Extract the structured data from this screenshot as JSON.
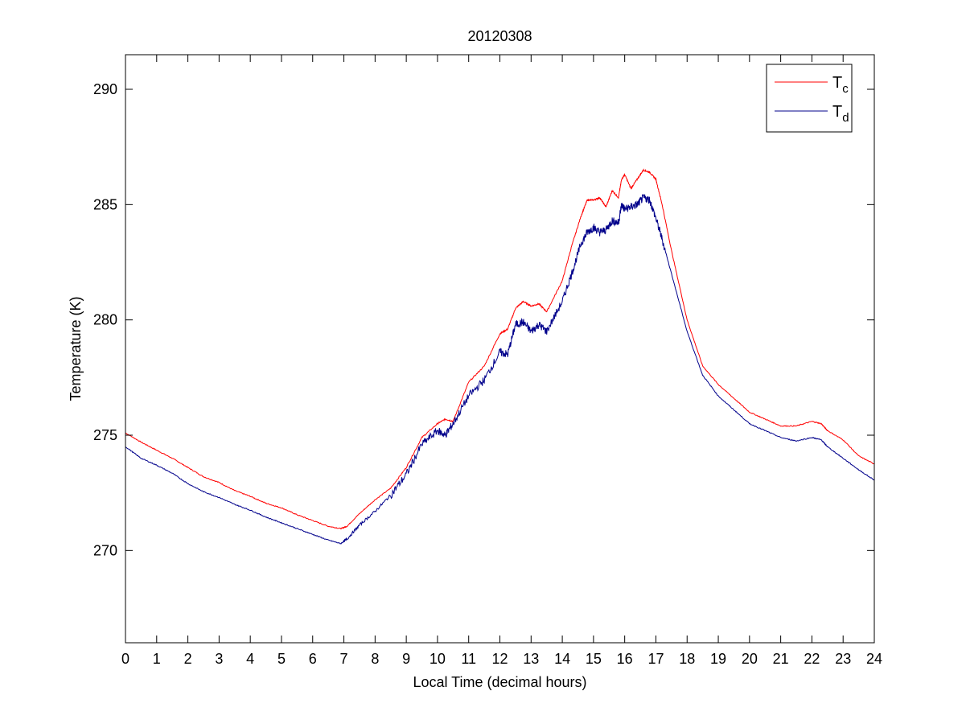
{
  "chart_data": {
    "type": "line",
    "title": "20120308",
    "xlabel": "Local Time (decimal hours)",
    "ylabel": "Temperature (K)",
    "xlim": [
      0,
      24
    ],
    "ylim": [
      266,
      291.5
    ],
    "xticks": [
      "0",
      "1",
      "2",
      "3",
      "4",
      "5",
      "6",
      "7",
      "8",
      "9",
      "10",
      "11",
      "12",
      "13",
      "14",
      "15",
      "16",
      "17",
      "18",
      "19",
      "20",
      "21",
      "22",
      "23",
      "24"
    ],
    "yticks": [
      "270",
      "275",
      "280",
      "285",
      "290"
    ],
    "legend_position": "top-right",
    "grid": false,
    "series": [
      {
        "name_main": "T",
        "name_sub": "c",
        "color": "#ff0000",
        "x": [
          0,
          0.5,
          1,
          1.5,
          2,
          2.5,
          3,
          3.5,
          4,
          4.5,
          5,
          5.5,
          6,
          6.5,
          6.9,
          7.1,
          7.5,
          8,
          8.5,
          9,
          9.5,
          10,
          10.25,
          10.5,
          11,
          11.5,
          12,
          12.25,
          12.5,
          12.75,
          13,
          13.25,
          13.5,
          14,
          14.3,
          14.6,
          14.8,
          15,
          15.2,
          15.4,
          15.6,
          15.8,
          15.9,
          16,
          16.2,
          16.4,
          16.6,
          16.8,
          17,
          17.2,
          17.5,
          18,
          18.5,
          19,
          19.5,
          20,
          20.5,
          21,
          21.5,
          22,
          22.3,
          22.5,
          23,
          23.5,
          24
        ],
        "y": [
          275.1,
          274.7,
          274.35,
          274.0,
          273.6,
          273.2,
          272.95,
          272.6,
          272.35,
          272.05,
          271.85,
          271.55,
          271.3,
          271.05,
          270.95,
          271.05,
          271.6,
          272.2,
          272.7,
          273.6,
          274.9,
          275.5,
          275.7,
          275.6,
          277.3,
          278.0,
          279.4,
          279.6,
          280.5,
          280.8,
          280.6,
          280.7,
          280.35,
          281.7,
          283.2,
          284.5,
          285.2,
          285.2,
          285.3,
          284.9,
          285.6,
          285.3,
          286.1,
          286.3,
          285.7,
          286.1,
          286.5,
          286.4,
          286.1,
          285.0,
          283.0,
          280.0,
          278.0,
          277.2,
          276.6,
          276.0,
          275.7,
          275.4,
          275.4,
          275.6,
          275.5,
          275.2,
          274.8,
          274.1,
          273.75
        ]
      },
      {
        "name_main": "T",
        "name_sub": "d",
        "color": "#00008b",
        "x": [
          0,
          0.5,
          1,
          1.5,
          2,
          2.5,
          3,
          3.5,
          4,
          4.5,
          5,
          5.5,
          6,
          6.5,
          6.9,
          7.1,
          7.5,
          8,
          8.5,
          9,
          9.5,
          10,
          10.25,
          10.5,
          11,
          11.5,
          12,
          12.25,
          12.5,
          12.75,
          13,
          13.25,
          13.5,
          14,
          14.3,
          14.6,
          14.8,
          15,
          15.2,
          15.4,
          15.6,
          15.8,
          15.9,
          16,
          16.2,
          16.4,
          16.6,
          16.8,
          17,
          17.2,
          17.5,
          18,
          18.5,
          19,
          19.5,
          20,
          20.5,
          21,
          21.5,
          22,
          22.3,
          22.5,
          23,
          23.5,
          24
        ],
        "y": [
          274.5,
          274.0,
          273.7,
          273.35,
          272.9,
          272.55,
          272.3,
          272.0,
          271.75,
          271.45,
          271.2,
          270.95,
          270.7,
          270.45,
          270.3,
          270.5,
          271.1,
          271.7,
          272.4,
          273.3,
          274.6,
          275.2,
          275.0,
          275.5,
          276.7,
          277.4,
          278.6,
          278.5,
          279.8,
          279.9,
          279.5,
          279.8,
          279.5,
          280.8,
          282.0,
          283.3,
          283.8,
          284.0,
          283.8,
          283.9,
          284.3,
          284.2,
          285.0,
          284.8,
          284.9,
          285.0,
          285.3,
          285.2,
          284.4,
          283.5,
          282.0,
          279.5,
          277.6,
          276.7,
          276.1,
          275.5,
          275.2,
          274.9,
          274.75,
          274.9,
          274.8,
          274.5,
          274.0,
          273.5,
          273.05
        ]
      }
    ]
  }
}
